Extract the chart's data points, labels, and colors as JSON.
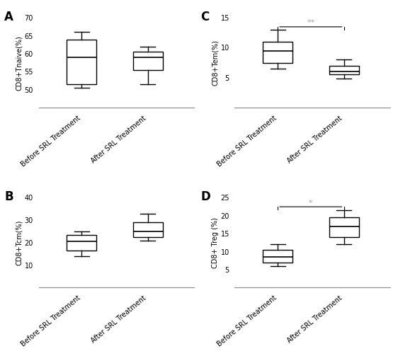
{
  "panels": {
    "A": {
      "label": "A",
      "ylabel": "CD8+Tnaive(%)",
      "ylim": [
        45,
        70
      ],
      "yticks": [
        50,
        55,
        60,
        65,
        70
      ],
      "significance": null,
      "boxes": {
        "Before SRL Treatment": {
          "whislo": 50.5,
          "q1": 51.5,
          "med": 59.0,
          "q3": 64.0,
          "whishi": 66.0
        },
        "After SRL Treatment": {
          "whislo": 51.5,
          "q1": 55.5,
          "med": 59.0,
          "q3": 60.5,
          "whishi": 62.0
        }
      }
    },
    "B": {
      "label": "B",
      "ylabel": "CD8+Tcm(%)",
      "ylim": [
        0,
        40
      ],
      "yticks": [
        10,
        20,
        30,
        40
      ],
      "significance": null,
      "boxes": {
        "Before SRL Treatment": {
          "whislo": 14.0,
          "q1": 16.5,
          "med": 20.5,
          "q3": 23.5,
          "whishi": 25.0
        },
        "After SRL Treatment": {
          "whislo": 21.0,
          "q1": 22.5,
          "med": 25.0,
          "q3": 29.0,
          "whishi": 33.0
        }
      }
    },
    "C": {
      "label": "C",
      "ylabel": "CD8+Tem(%)",
      "ylim": [
        0,
        15
      ],
      "yticks": [
        5,
        10,
        15
      ],
      "significance": "**",
      "sig_color": "#aaaaaa",
      "boxes": {
        "Before SRL Treatment": {
          "whislo": 6.5,
          "q1": 7.5,
          "med": 9.5,
          "q3": 11.0,
          "whishi": 13.0
        },
        "After SRL Treatment": {
          "whislo": 4.8,
          "q1": 5.5,
          "med": 6.0,
          "q3": 7.0,
          "whishi": 8.0
        }
      }
    },
    "D": {
      "label": "D",
      "ylabel": "CD8+ Treg (%)",
      "ylim": [
        0,
        25
      ],
      "yticks": [
        5,
        10,
        15,
        20,
        25
      ],
      "significance": "*",
      "sig_color": "#aaaaaa",
      "boxes": {
        "Before SRL Treatment": {
          "whislo": 6.0,
          "q1": 7.0,
          "med": 8.5,
          "q3": 10.5,
          "whishi": 12.0
        },
        "After SRL Treatment": {
          "whislo": 12.0,
          "q1": 14.0,
          "med": 17.0,
          "q3": 19.5,
          "whishi": 21.5
        }
      }
    }
  },
  "categories": [
    "Before SRL Treatment",
    "After SRL Treatment"
  ],
  "box_color": "#ffffff",
  "box_edge_color": "#000000",
  "median_color": "#000000",
  "whisker_color": "#000000",
  "cap_color": "#000000",
  "background_color": "#ffffff",
  "panel_order": [
    "A",
    "B",
    "C",
    "D"
  ]
}
